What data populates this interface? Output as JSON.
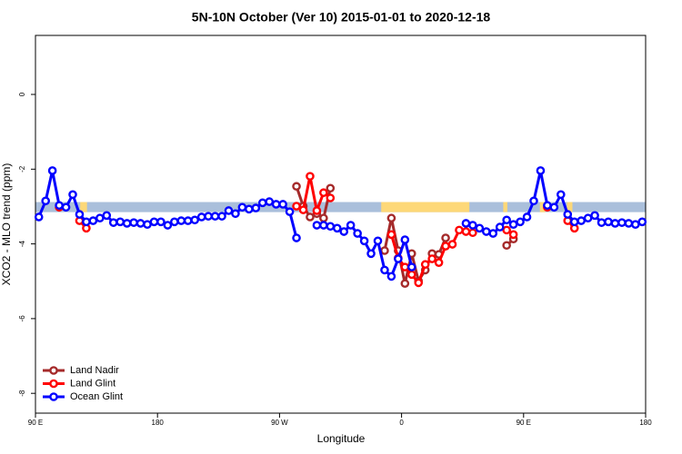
{
  "chart_data": {
    "type": "line",
    "title": "5N-10N October (Ver 10)   2015-01-01 to 2020-12-18",
    "x_label": "Longitude",
    "y_label": "XCO2 - MLO trend (ppm)",
    "xlim": [
      90,
      540
    ],
    "xticks": [
      {
        "value": 90,
        "label": "90 E"
      },
      {
        "value": 180,
        "label": "180"
      },
      {
        "value": 270,
        "label": "90 W"
      },
      {
        "value": 360,
        "label": "0"
      },
      {
        "value": 450,
        "label": "90 E"
      },
      {
        "value": 540,
        "label": "180"
      }
    ],
    "ylim": [
      -8.53,
      1.58
    ],
    "yticks": [
      -8,
      -6,
      -4,
      -2,
      0
    ],
    "legend": "bottom-left",
    "band": {
      "range": [
        -3.15,
        -2.88
      ],
      "color": "#aabfdb",
      "land_color": "#fdd878",
      "land_spans": [
        [
          123,
          128
        ],
        [
          345,
          410
        ],
        [
          435,
          438
        ],
        [
          462,
          466
        ],
        [
          482,
          486
        ]
      ]
    },
    "x": [
      92.5,
      97.5,
      102.5,
      107.5,
      112.5,
      117.5,
      122.5,
      127.5,
      132.5,
      137.5,
      142.5,
      147.5,
      152.5,
      157.5,
      162.5,
      167.5,
      172.5,
      177.5,
      182.5,
      187.5,
      192.5,
      197.5,
      202.5,
      207.5,
      212.5,
      217.5,
      222.5,
      227.5,
      232.5,
      237.5,
      242.5,
      247.5,
      252.5,
      257.5,
      262.5,
      267.5,
      272.5,
      277.5,
      282.5,
      287.5,
      292.5,
      297.5,
      302.5,
      307.5,
      312.5,
      317.5,
      322.5,
      327.5,
      332.5,
      337.5,
      342.5,
      347.5,
      352.5,
      357.5,
      362.5,
      367.5,
      372.5,
      377.5,
      382.5,
      387.5,
      392.5,
      397.5,
      402.5,
      407.5,
      412.5,
      417.5,
      422.5,
      427.5,
      432.5,
      437.5,
      442.5,
      447.5,
      452.5,
      457.5,
      462.5,
      467.5,
      472.5,
      477.5,
      482.5,
      487.5,
      492.5,
      497.5,
      502.5,
      507.5,
      512.5,
      517.5,
      522.5,
      527.5,
      532.5,
      537.5
    ],
    "series": [
      {
        "name": "Land Nadir",
        "color": "#a52a2a",
        "values": [
          null,
          null,
          null,
          null,
          null,
          null,
          null,
          null,
          null,
          null,
          null,
          null,
          null,
          null,
          null,
          null,
          null,
          null,
          null,
          null,
          null,
          null,
          null,
          null,
          null,
          null,
          null,
          null,
          null,
          null,
          null,
          null,
          null,
          null,
          null,
          null,
          null,
          null,
          -2.46,
          -2.99,
          -3.28,
          -3.19,
          -3.31,
          -2.51,
          null,
          null,
          null,
          null,
          null,
          null,
          null,
          -4.18,
          -3.31,
          -4.18,
          -5.06,
          -4.26,
          -4.99,
          -4.7,
          -4.26,
          -4.28,
          -3.84,
          null,
          null,
          null,
          null,
          null,
          null,
          null,
          null,
          -4.04,
          -3.87,
          null,
          null,
          null,
          null,
          null,
          null,
          null,
          null,
          null,
          null,
          null,
          null,
          null,
          null,
          null,
          null,
          null,
          null,
          null
        ]
      },
      {
        "name": "Land Glint",
        "color": "#ff0000",
        "values": [
          null,
          null,
          null,
          -3.02,
          null,
          null,
          -3.38,
          -3.58,
          null,
          null,
          null,
          null,
          null,
          null,
          null,
          null,
          null,
          null,
          null,
          null,
          null,
          null,
          null,
          null,
          null,
          null,
          null,
          null,
          null,
          null,
          null,
          null,
          null,
          null,
          null,
          null,
          null,
          null,
          -2.99,
          -3.09,
          -2.19,
          -3.11,
          -2.63,
          -2.77,
          null,
          null,
          null,
          null,
          null,
          null,
          null,
          null,
          -3.75,
          -4.38,
          -4.62,
          -4.82,
          -5.04,
          -4.55,
          -4.4,
          -4.5,
          -4.06,
          -4.01,
          -3.63,
          -3.67,
          -3.7,
          null,
          null,
          null,
          null,
          -3.63,
          -3.75,
          null,
          null,
          null,
          null,
          -3.02,
          null,
          null,
          -3.38,
          -3.58,
          null,
          null,
          null,
          null,
          null,
          null,
          null,
          null,
          null,
          null
        ]
      },
      {
        "name": "Ocean Glint",
        "color": "#0000ff",
        "values": [
          -3.28,
          -2.85,
          -2.04,
          -2.97,
          -3.02,
          -2.68,
          -3.21,
          -3.41,
          -3.38,
          -3.31,
          -3.24,
          -3.43,
          -3.41,
          -3.45,
          -3.43,
          -3.45,
          -3.48,
          -3.41,
          -3.41,
          -3.5,
          -3.41,
          -3.38,
          -3.38,
          -3.36,
          -3.28,
          -3.26,
          -3.26,
          -3.26,
          -3.11,
          -3.19,
          -3.02,
          -3.07,
          -3.04,
          -2.9,
          -2.87,
          -2.94,
          -2.94,
          -3.14,
          -3.84,
          null,
          null,
          -3.5,
          -3.5,
          -3.53,
          -3.58,
          -3.67,
          -3.5,
          -3.72,
          -3.92,
          -4.26,
          -3.92,
          -4.7,
          -4.87,
          -4.4,
          -3.89,
          -4.62,
          null,
          null,
          null,
          null,
          null,
          null,
          null,
          -3.45,
          -3.5,
          -3.58,
          -3.67,
          -3.72,
          -3.55,
          -3.36,
          -3.48,
          -3.41,
          -3.28,
          -2.85,
          -2.04,
          -2.97,
          -3.02,
          -2.68,
          -3.21,
          -3.41,
          -3.38,
          -3.31,
          -3.24,
          -3.43,
          -3.41,
          -3.45,
          -3.43,
          -3.45,
          -3.48,
          -3.41
        ]
      }
    ]
  }
}
